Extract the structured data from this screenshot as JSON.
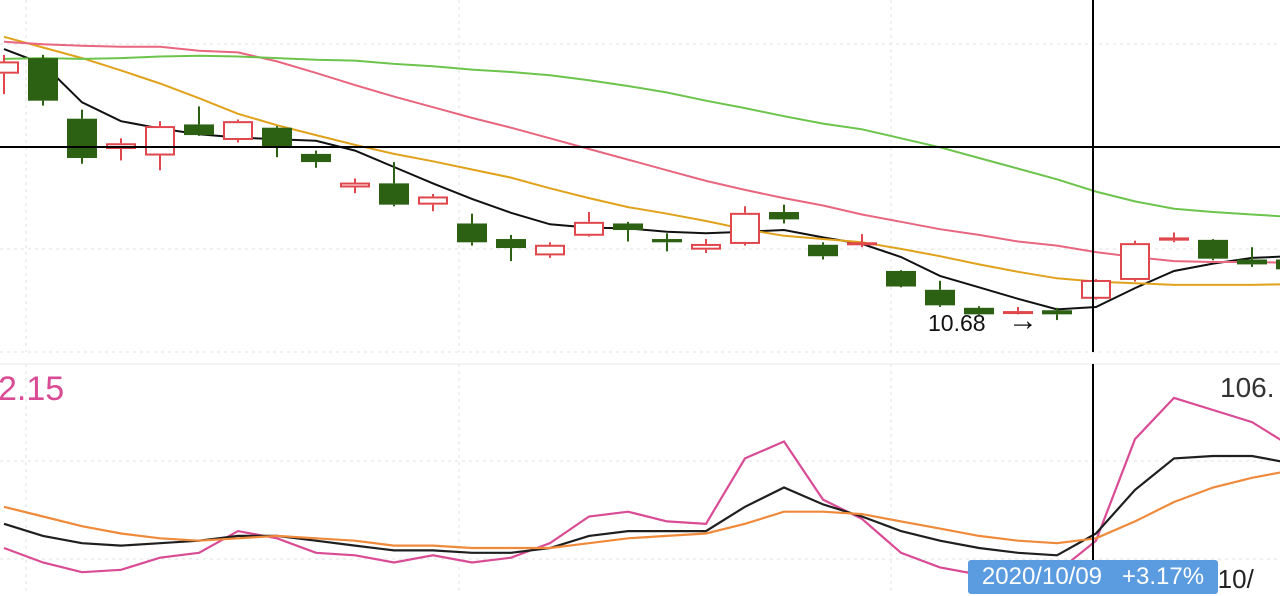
{
  "chart_data": [
    {
      "type": "candlestick",
      "panel": "price",
      "title": "",
      "candles": [
        {
          "open": 13.55,
          "close": 13.7,
          "high": 13.78,
          "low": 13.3
        },
        {
          "open": 13.74,
          "close": 13.22,
          "high": 13.78,
          "low": 13.16
        },
        {
          "open": 13.0,
          "close": 12.52,
          "high": 13.11,
          "low": 12.45
        },
        {
          "open": 12.63,
          "close": 12.7,
          "high": 12.76,
          "low": 12.49
        },
        {
          "open": 12.55,
          "close": 12.91,
          "high": 12.97,
          "low": 12.37
        },
        {
          "open": 12.93,
          "close": 12.8,
          "high": 13.15,
          "low": 12.79
        },
        {
          "open": 12.74,
          "close": 12.97,
          "high": 12.99,
          "low": 12.71
        },
        {
          "open": 12.89,
          "close": 12.66,
          "high": 12.91,
          "low": 12.53
        },
        {
          "open": 12.57,
          "close": 12.47,
          "high": 12.61,
          "low": 12.4
        },
        {
          "open": 12.16,
          "close": 12.22,
          "high": 12.27,
          "low": 12.09
        },
        {
          "open": 12.21,
          "close": 11.95,
          "high": 12.47,
          "low": 11.93
        },
        {
          "open": 11.95,
          "close": 12.05,
          "high": 12.08,
          "low": 11.87
        },
        {
          "open": 11.72,
          "close": 11.49,
          "high": 11.84,
          "low": 11.45
        },
        {
          "open": 11.53,
          "close": 11.42,
          "high": 11.58,
          "low": 11.26
        },
        {
          "open": 11.33,
          "close": 11.46,
          "high": 11.49,
          "low": 11.3
        },
        {
          "open": 11.57,
          "close": 11.74,
          "high": 11.86,
          "low": 11.56
        },
        {
          "open": 11.72,
          "close": 11.64,
          "high": 11.74,
          "low": 11.5
        },
        {
          "open": 11.53,
          "close": 11.49,
          "high": 11.6,
          "low": 11.38
        },
        {
          "open": 11.4,
          "close": 11.47,
          "high": 11.53,
          "low": 11.36
        },
        {
          "open": 11.47,
          "close": 11.85,
          "high": 11.93,
          "low": 11.45
        },
        {
          "open": 11.86,
          "close": 11.77,
          "high": 11.95,
          "low": 11.72
        },
        {
          "open": 11.46,
          "close": 11.32,
          "high": 11.49,
          "low": 11.28
        },
        {
          "open": 11.47,
          "close": 11.49,
          "high": 11.59,
          "low": 11.43
        },
        {
          "open": 11.14,
          "close": 10.95,
          "high": 11.15,
          "low": 10.94
        },
        {
          "open": 10.91,
          "close": 10.72,
          "high": 11.02,
          "low": 10.7
        },
        {
          "open": 10.69,
          "close": 10.61,
          "high": 10.71,
          "low": 10.6
        },
        {
          "open": 10.63,
          "close": 10.65,
          "high": 10.7,
          "low": 10.61
        },
        {
          "open": 10.66,
          "close": 10.61,
          "high": 10.69,
          "low": 10.54
        },
        {
          "open": 10.8,
          "close": 11.03,
          "high": 11.04,
          "low": 10.79
        },
        {
          "open": 11.03,
          "close": 11.48,
          "high": 11.51,
          "low": 11.01
        },
        {
          "open": 11.51,
          "close": 11.55,
          "high": 11.61,
          "low": 11.49
        },
        {
          "open": 11.52,
          "close": 11.29,
          "high": 11.53,
          "low": 11.27
        },
        {
          "open": 11.28,
          "close": 11.22,
          "high": 11.43,
          "low": 11.19
        },
        {
          "open": 11.28,
          "close": 11.16,
          "high": 11.3,
          "low": 11.14
        }
      ],
      "moving_averages": [
        {
          "name": "MA5",
          "color": "#111111",
          "values": [
            13.85,
            13.67,
            13.2,
            12.97,
            12.88,
            12.81,
            12.77,
            12.75,
            12.73,
            12.61,
            12.41,
            12.21,
            12.02,
            11.85,
            11.71,
            11.67,
            11.66,
            11.62,
            11.6,
            11.62,
            11.64,
            11.55,
            11.47,
            11.31,
            11.08,
            10.94,
            10.8,
            10.67,
            10.7,
            10.93,
            11.14,
            11.23,
            11.3,
            11.32
          ]
        },
        {
          "name": "MA10",
          "color": "#e0a21b",
          "values": [
            14.0,
            13.87,
            13.74,
            13.59,
            13.43,
            13.25,
            13.06,
            12.92,
            12.8,
            12.68,
            12.57,
            12.48,
            12.38,
            12.28,
            12.15,
            12.03,
            11.92,
            11.84,
            11.75,
            11.65,
            11.57,
            11.53,
            11.49,
            11.41,
            11.32,
            11.22,
            11.13,
            11.05,
            11.01,
            10.99,
            10.97,
            10.97,
            10.97,
            10.98
          ]
        },
        {
          "name": "MA20",
          "color": "#e8667f",
          "values": [
            13.94,
            13.91,
            13.89,
            13.88,
            13.88,
            13.83,
            13.81,
            13.7,
            13.56,
            13.41,
            13.27,
            13.14,
            13.01,
            12.89,
            12.76,
            12.63,
            12.5,
            12.37,
            12.24,
            12.13,
            12.03,
            11.94,
            11.83,
            11.74,
            11.65,
            11.58,
            11.5,
            11.45,
            11.37,
            11.31,
            11.26,
            11.25,
            11.25,
            11.24
          ]
        },
        {
          "name": "MA30",
          "color": "#6cc44c",
          "values": [
            13.73,
            13.74,
            13.73,
            13.74,
            13.76,
            13.77,
            13.76,
            13.74,
            13.72,
            13.71,
            13.67,
            13.64,
            13.6,
            13.57,
            13.53,
            13.47,
            13.4,
            13.32,
            13.22,
            13.13,
            13.03,
            12.94,
            12.87,
            12.76,
            12.65,
            12.52,
            12.39,
            12.26,
            12.11,
            11.99,
            11.9,
            11.86,
            11.83,
            11.8
          ]
        }
      ],
      "annotations": [
        {
          "text": "10.68",
          "marker": "→"
        }
      ],
      "ylim": [
        10.15,
        14.45
      ]
    },
    {
      "type": "line",
      "panel": "indicator",
      "series": [
        {
          "name": "fast",
          "color": "#d94b94",
          "values": [
            13,
            7,
            3,
            4,
            9,
            11,
            20,
            17,
            11,
            10,
            7,
            10,
            7,
            9,
            15,
            26,
            28,
            24,
            23,
            50,
            57,
            33,
            25,
            11,
            5,
            2,
            3,
            3,
            16,
            58,
            75,
            70,
            65,
            55
          ]
        },
        {
          "name": "mid",
          "color": "#1f1f1f",
          "values": [
            23,
            18,
            15,
            14,
            15,
            16,
            18,
            18,
            16,
            14,
            12,
            12,
            11,
            11,
            13,
            18,
            20,
            20,
            20,
            30,
            38,
            31,
            26,
            20,
            16,
            13,
            11,
            10,
            19,
            37,
            50,
            51,
            51,
            48
          ]
        },
        {
          "name": "slow",
          "color": "#ef8a3b",
          "values": [
            30,
            26,
            22,
            19,
            17,
            16,
            17,
            18,
            17,
            16,
            14,
            14,
            13,
            13,
            13,
            15,
            17,
            18,
            19,
            23,
            28,
            28,
            27,
            24,
            21,
            18,
            16,
            15,
            17,
            24,
            32,
            38,
            42,
            45
          ]
        }
      ],
      "ylim": [
        -6,
        89
      ],
      "labels": {
        "left_value": "2.15",
        "right_value": "106."
      }
    }
  ],
  "crosshair": {
    "date_tag": "2020/10/09   +3.17%",
    "axis_date_behind": "0/10/"
  }
}
